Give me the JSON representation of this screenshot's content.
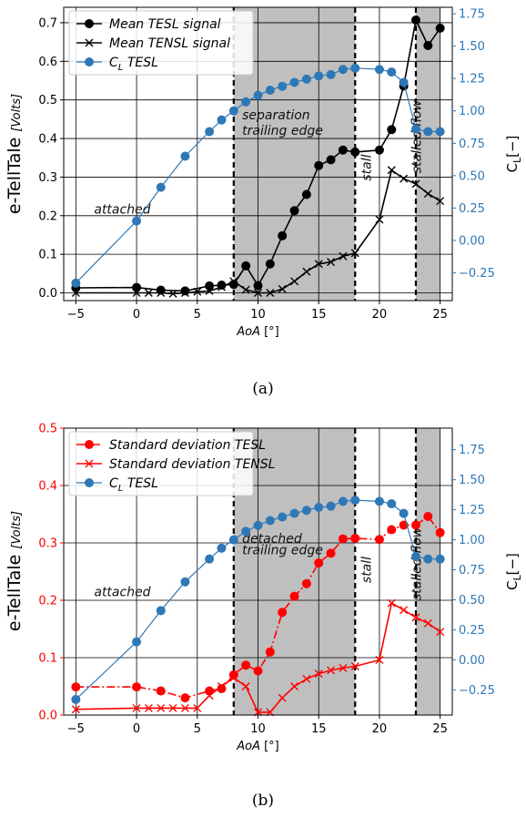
{
  "chart_data": [
    {
      "type": "line",
      "caption": "(a)",
      "xlabel": "AoA [°]",
      "ylabel_left": "e-TellTale",
      "ylabel_left_unit": "[Volts]",
      "ylabel_right": "C_L[−]",
      "xlim": [
        -6,
        26
      ],
      "ylim_left": [
        -0.02,
        0.74
      ],
      "ylim_right": [
        -0.465,
        1.8
      ],
      "x_ticks": [
        -5,
        0,
        5,
        10,
        15,
        20,
        25
      ],
      "y_left_ticks": [
        0.0,
        0.1,
        0.2,
        0.3,
        0.4,
        0.5,
        0.6,
        0.7
      ],
      "y_right_ticks": [
        -0.25,
        0.0,
        0.25,
        0.5,
        0.75,
        1.0,
        1.25,
        1.5,
        1.75
      ],
      "grid": true,
      "legend_position": "top-left",
      "shaded_regions": [
        [
          8,
          18
        ],
        [
          23,
          25
        ]
      ],
      "vlines": [
        8,
        18,
        23
      ],
      "annotations": [
        {
          "text": "attached",
          "x": -3.5,
          "y": 0.205,
          "rotate": 0
        },
        {
          "text": "separation",
          "x": 8.7,
          "y": 0.45,
          "rotate": 0
        },
        {
          "text": "trailing edge",
          "x": 8.7,
          "y": 0.41,
          "rotate": 0
        },
        {
          "text": "stall",
          "x": 19.3,
          "y": 0.29,
          "rotate": -90
        },
        {
          "text": "stalled flow",
          "x": 23.4,
          "y": 0.31,
          "rotate": -90
        }
      ],
      "series": [
        {
          "name": "Mean TESL signal",
          "axis": "left",
          "color": "#000000",
          "marker": "circle",
          "x": [
            -5,
            0,
            2,
            4,
            6,
            7,
            8,
            9,
            10,
            11,
            12,
            13,
            14,
            15,
            16,
            17,
            18,
            20,
            21,
            22,
            23,
            24,
            25
          ],
          "y": [
            0.013,
            0.014,
            0.007,
            0.005,
            0.018,
            0.02,
            0.022,
            0.07,
            0.019,
            0.075,
            0.148,
            0.213,
            0.255,
            0.33,
            0.345,
            0.37,
            0.365,
            0.37,
            0.423,
            0.536,
            0.707,
            0.641,
            0.686
          ]
        },
        {
          "name": "Mean TENSL signal",
          "axis": "left",
          "color": "#000000",
          "marker": "x",
          "x": [
            -5,
            0,
            1,
            2,
            3,
            4,
            5,
            6,
            7,
            8,
            9,
            10,
            11,
            12,
            13,
            14,
            15,
            16,
            17,
            18,
            20,
            21,
            22,
            23,
            24,
            25
          ],
          "y": [
            0.0,
            0.0,
            0.0,
            0.0,
            -0.002,
            0.0,
            0.003,
            0.005,
            0.015,
            0.03,
            0.008,
            0.0,
            0.0,
            0.01,
            0.03,
            0.055,
            0.075,
            0.08,
            0.095,
            0.103,
            0.19,
            0.318,
            0.296,
            0.282,
            0.257,
            0.238
          ]
        },
        {
          "name": "C_L TESL",
          "axis": "right",
          "color": "#2e78b6",
          "marker": "circle",
          "x": [
            -5,
            0,
            2,
            4,
            6,
            7,
            8,
            9,
            10,
            11,
            12,
            13,
            14,
            15,
            16,
            17,
            18,
            20,
            21,
            22,
            23,
            24,
            25
          ],
          "y": [
            -0.33,
            0.15,
            0.41,
            0.65,
            0.84,
            0.93,
            1.0,
            1.07,
            1.12,
            1.16,
            1.19,
            1.22,
            1.245,
            1.27,
            1.28,
            1.32,
            1.33,
            1.32,
            1.3,
            1.22,
            0.86,
            0.84,
            0.84
          ]
        }
      ]
    },
    {
      "type": "line",
      "caption": "(b)",
      "xlabel": "AoA [°]",
      "ylabel_left": "e-TellTale",
      "ylabel_left_unit": "[Volts]",
      "ylabel_right": "C_L[−]",
      "xlim": [
        -6,
        26
      ],
      "ylim_left": [
        0.0,
        0.5
      ],
      "ylim_right": [
        -0.46,
        1.93
      ],
      "x_ticks": [
        -5,
        0,
        5,
        10,
        15,
        20,
        25
      ],
      "y_left_ticks": [
        0.0,
        0.1,
        0.2,
        0.3,
        0.4,
        0.5
      ],
      "y_right_ticks": [
        -0.25,
        0.0,
        0.25,
        0.5,
        0.75,
        1.0,
        1.25,
        1.5,
        1.75
      ],
      "grid": true,
      "legend_position": "top-left",
      "shaded_regions": [
        [
          8,
          18
        ],
        [
          23,
          25
        ]
      ],
      "vlines": [
        8,
        18,
        23
      ],
      "annotations": [
        {
          "text": "attached",
          "x": -3.5,
          "y": 0.207,
          "rotate": 0
        },
        {
          "text": "detached",
          "x": 8.7,
          "y": 0.3,
          "rotate": 0
        },
        {
          "text": "trailing edge",
          "x": 8.7,
          "y": 0.28,
          "rotate": 0
        },
        {
          "text": "stall",
          "x": 19.3,
          "y": 0.23,
          "rotate": -90
        },
        {
          "text": "stalled flow",
          "x": 23.4,
          "y": 0.2,
          "rotate": -90
        }
      ],
      "series": [
        {
          "name": "Standard deviation TESL",
          "axis": "left",
          "color": "#ff0000",
          "marker": "circle",
          "dash": "dashdot",
          "x": [
            -5,
            0,
            2,
            4,
            6,
            7,
            8,
            9,
            10,
            11,
            12,
            13,
            14,
            15,
            16,
            17,
            18,
            20,
            21,
            22,
            23,
            24,
            25
          ],
          "y": [
            0.049,
            0.049,
            0.042,
            0.03,
            0.042,
            0.046,
            0.07,
            0.087,
            0.077,
            0.11,
            0.179,
            0.207,
            0.229,
            0.265,
            0.282,
            0.307,
            0.308,
            0.306,
            0.323,
            0.331,
            0.331,
            0.346,
            0.318
          ]
        },
        {
          "name": "Standard deviation TENSL",
          "axis": "left",
          "color": "#ff0000",
          "marker": "x",
          "x": [
            -5,
            0,
            1,
            2,
            3,
            4,
            5,
            6,
            7,
            8,
            9,
            10,
            11,
            12,
            13,
            14,
            15,
            16,
            17,
            18,
            20,
            21,
            22,
            23,
            24,
            25
          ],
          "y": [
            0.01,
            0.012,
            0.012,
            0.012,
            0.012,
            0.012,
            0.012,
            0.034,
            0.05,
            0.065,
            0.05,
            0.005,
            0.005,
            0.03,
            0.05,
            0.063,
            0.072,
            0.078,
            0.082,
            0.085,
            0.096,
            0.195,
            0.183,
            0.17,
            0.16,
            0.145
          ]
        },
        {
          "name": "C_L TESL",
          "axis": "right",
          "color": "#2e78b6",
          "marker": "circle",
          "x": [
            -5,
            0,
            2,
            4,
            6,
            7,
            8,
            9,
            10,
            11,
            12,
            13,
            14,
            15,
            16,
            17,
            18,
            20,
            21,
            22,
            23,
            24,
            25
          ],
          "y": [
            -0.33,
            0.15,
            0.41,
            0.65,
            0.84,
            0.93,
            1.0,
            1.07,
            1.12,
            1.16,
            1.19,
            1.22,
            1.245,
            1.27,
            1.28,
            1.32,
            1.33,
            1.32,
            1.3,
            1.22,
            0.86,
            0.84,
            0.84
          ]
        }
      ]
    }
  ]
}
